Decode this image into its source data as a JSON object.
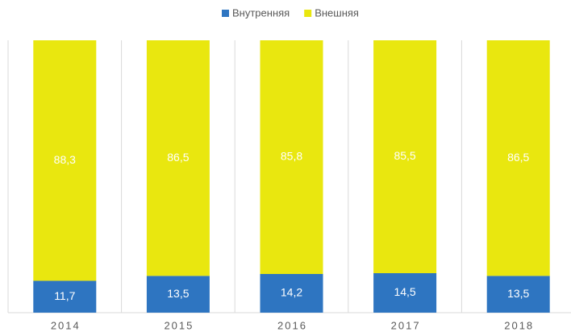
{
  "chart_data": {
    "type": "stacked_bar",
    "categories": [
      "2014",
      "2015",
      "2016",
      "2017",
      "2018"
    ],
    "series": [
      {
        "name": "Внутренняя",
        "color": "#2e75c1",
        "values": [
          11.7,
          13.5,
          14.2,
          14.5,
          13.5
        ],
        "value_labels": [
          "11,7",
          "13,5",
          "14,2",
          "14,5",
          "13,5"
        ]
      },
      {
        "name": "Внешняя",
        "color": "#e9e70f",
        "values": [
          88.3,
          86.5,
          85.8,
          85.5,
          86.5
        ],
        "value_labels": [
          "88,3",
          "86,5",
          "85,8",
          "85,5",
          "86,5"
        ]
      }
    ],
    "ylim": [
      0,
      100
    ],
    "legend": "top"
  }
}
